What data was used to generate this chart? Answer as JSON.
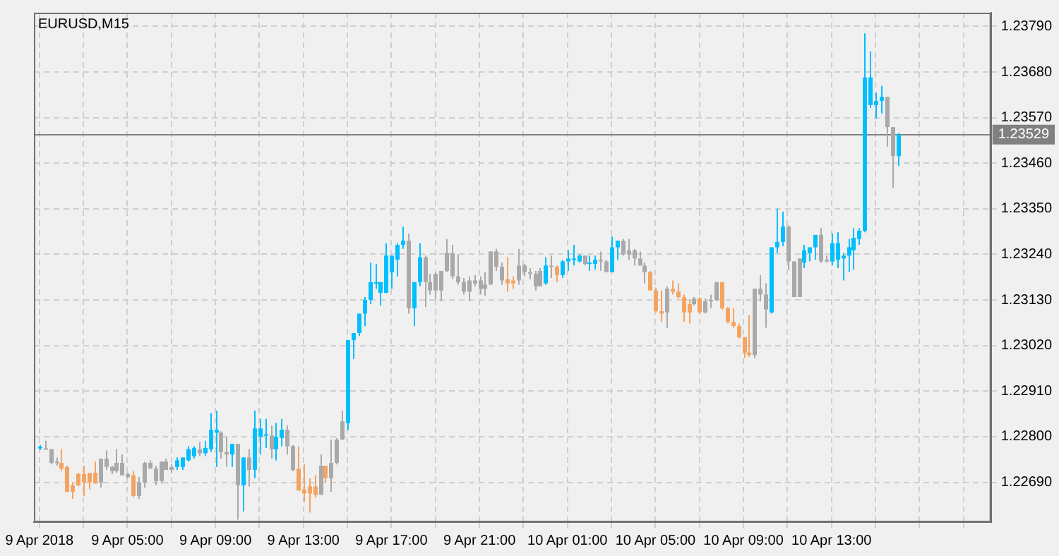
{
  "chart_data": {
    "type": "candlestick",
    "title": "EURUSD,M15",
    "x": [
      "2018-04-09T01:00",
      "2018-04-09T01:15",
      "2018-04-09T01:30",
      "2018-04-09T01:45",
      "2018-04-09T02:00",
      "2018-04-09T02:15",
      "2018-04-09T02:30",
      "2018-04-09T02:45",
      "2018-04-09T03:00",
      "2018-04-09T03:15",
      "2018-04-09T03:30",
      "2018-04-09T03:45",
      "2018-04-09T04:00",
      "2018-04-09T04:15",
      "2018-04-09T04:30",
      "2018-04-09T04:45",
      "2018-04-09T05:00",
      "2018-04-09T05:15",
      "2018-04-09T05:30",
      "2018-04-09T05:45",
      "2018-04-09T06:00",
      "2018-04-09T06:15",
      "2018-04-09T06:30",
      "2018-04-09T06:45",
      "2018-04-09T07:00",
      "2018-04-09T07:15",
      "2018-04-09T07:30",
      "2018-04-09T07:45",
      "2018-04-09T08:00",
      "2018-04-09T08:15",
      "2018-04-09T08:30",
      "2018-04-09T08:45",
      "2018-04-09T09:00",
      "2018-04-09T09:15",
      "2018-04-09T09:30",
      "2018-04-09T09:45",
      "2018-04-09T10:00",
      "2018-04-09T10:15",
      "2018-04-09T10:30",
      "2018-04-09T10:45",
      "2018-04-09T11:00",
      "2018-04-09T11:15",
      "2018-04-09T11:30",
      "2018-04-09T11:45",
      "2018-04-09T12:00",
      "2018-04-09T12:15",
      "2018-04-09T12:30",
      "2018-04-09T12:45",
      "2018-04-09T13:00",
      "2018-04-09T13:15",
      "2018-04-09T13:30",
      "2018-04-09T13:45",
      "2018-04-09T14:00",
      "2018-04-09T14:15",
      "2018-04-09T14:30",
      "2018-04-09T14:45",
      "2018-04-09T15:00",
      "2018-04-09T15:15",
      "2018-04-09T15:30",
      "2018-04-09T15:45",
      "2018-04-09T16:00",
      "2018-04-09T16:15",
      "2018-04-09T16:30",
      "2018-04-09T16:45",
      "2018-04-09T17:00",
      "2018-04-09T17:15",
      "2018-04-09T17:30",
      "2018-04-09T17:45",
      "2018-04-09T18:00",
      "2018-04-09T18:15",
      "2018-04-09T18:30",
      "2018-04-09T18:45",
      "2018-04-09T19:00",
      "2018-04-09T19:15",
      "2018-04-09T19:30",
      "2018-04-09T19:45",
      "2018-04-09T20:00",
      "2018-04-09T20:15",
      "2018-04-09T20:30",
      "2018-04-09T20:45",
      "2018-04-09T21:00",
      "2018-04-09T21:15",
      "2018-04-09T21:30",
      "2018-04-09T21:45",
      "2018-04-09T22:00",
      "2018-04-09T22:15",
      "2018-04-09T22:30",
      "2018-04-09T22:45",
      "2018-04-09T23:00",
      "2018-04-09T23:15",
      "2018-04-09T23:30",
      "2018-04-09T23:45",
      "2018-04-10T00:00",
      "2018-04-10T00:15",
      "2018-04-10T00:30",
      "2018-04-10T00:45",
      "2018-04-10T01:00",
      "2018-04-10T01:15",
      "2018-04-10T01:30",
      "2018-04-10T01:45",
      "2018-04-10T02:00",
      "2018-04-10T02:15",
      "2018-04-10T02:30",
      "2018-04-10T02:45",
      "2018-04-10T03:00",
      "2018-04-10T03:15",
      "2018-04-10T03:30",
      "2018-04-10T03:45",
      "2018-04-10T04:00",
      "2018-04-10T04:15",
      "2018-04-10T04:30",
      "2018-04-10T04:45",
      "2018-04-10T05:00",
      "2018-04-10T05:15",
      "2018-04-10T05:30",
      "2018-04-10T05:45",
      "2018-04-10T06:00",
      "2018-04-10T06:15",
      "2018-04-10T06:30",
      "2018-04-10T06:45",
      "2018-04-10T07:00",
      "2018-04-10T07:15",
      "2018-04-10T07:30",
      "2018-04-10T07:45",
      "2018-04-10T08:00",
      "2018-04-10T08:15",
      "2018-04-10T08:30",
      "2018-04-10T08:45",
      "2018-04-10T09:00",
      "2018-04-10T09:15",
      "2018-04-10T09:30",
      "2018-04-10T09:45",
      "2018-04-10T10:00",
      "2018-04-10T10:15",
      "2018-04-10T10:30",
      "2018-04-10T10:45",
      "2018-04-10T11:00",
      "2018-04-10T11:15",
      "2018-04-10T11:30",
      "2018-04-10T11:45",
      "2018-04-10T12:00",
      "2018-04-10T12:15",
      "2018-04-10T12:30",
      "2018-04-10T12:45",
      "2018-04-10T13:00",
      "2018-04-10T13:15",
      "2018-04-10T13:30",
      "2018-04-10T13:45",
      "2018-04-10T14:00",
      "2018-04-10T14:15",
      "2018-04-10T14:30",
      "2018-04-10T14:45",
      "2018-04-10T15:00",
      "2018-04-10T15:15",
      "2018-04-10T15:30",
      "2018-04-10T15:45",
      "2018-04-10T16:00"
    ],
    "ohlc": [
      [
        1.22772,
        1.2278,
        1.22768,
        1.22776
      ],
      [
        1.22772,
        1.2279,
        1.2277,
        1.2277
      ],
      [
        1.2277,
        1.2277,
        1.22733,
        1.22737
      ],
      [
        1.2274,
        1.2275,
        1.2273,
        1.22737
      ],
      [
        1.22737,
        1.2277,
        1.22717,
        1.22723
      ],
      [
        1.22727,
        1.2273,
        1.22667,
        1.22667
      ],
      [
        1.22683,
        1.2269,
        1.2265,
        1.22667
      ],
      [
        1.2271,
        1.22713,
        1.2268,
        1.22683
      ],
      [
        1.2271,
        1.2273,
        1.22657,
        1.2269
      ],
      [
        1.22713,
        1.22713,
        1.22673,
        1.2269
      ],
      [
        1.22713,
        1.2274,
        1.22687,
        1.22687
      ],
      [
        1.22747,
        1.22747,
        1.22677,
        1.2269
      ],
      [
        1.22747,
        1.22767,
        1.2272,
        1.22727
      ],
      [
        1.22727,
        1.2273,
        1.2271,
        1.22717
      ],
      [
        1.22737,
        1.2277,
        1.22713,
        1.22717
      ],
      [
        1.22737,
        1.22757,
        1.22707,
        1.22707
      ],
      [
        1.2271,
        1.22713,
        1.227,
        1.22703
      ],
      [
        1.22707,
        1.22717,
        1.22653,
        1.22657
      ],
      [
        1.2269,
        1.22703,
        1.2265,
        1.22657
      ],
      [
        1.22737,
        1.2274,
        1.22677,
        1.2269
      ],
      [
        1.22737,
        1.22743,
        1.22723,
        1.22723
      ],
      [
        1.22723,
        1.2273,
        1.22683,
        1.22693
      ],
      [
        1.2274,
        1.2274,
        1.22687,
        1.22693
      ],
      [
        1.2274,
        1.22747,
        1.2272,
        1.2272
      ],
      [
        1.22727,
        1.22733,
        1.22713,
        1.2272
      ],
      [
        1.22727,
        1.2275,
        1.2272,
        1.22743
      ],
      [
        1.22727,
        1.2275,
        1.2272,
        1.2275
      ],
      [
        1.22743,
        1.22777,
        1.2274,
        1.2277
      ],
      [
        1.22753,
        1.22777,
        1.22747,
        1.22773
      ],
      [
        1.2277,
        1.22787,
        1.22753,
        1.2276
      ],
      [
        1.2276,
        1.2279,
        1.22753,
        1.22773
      ],
      [
        1.2277,
        1.22857,
        1.22763,
        1.22817
      ],
      [
        1.2281,
        1.22863,
        1.22727,
        1.22817
      ],
      [
        1.2281,
        1.22813,
        1.22747,
        1.22763
      ],
      [
        1.22763,
        1.228,
        1.22727,
        1.22757
      ],
      [
        1.22757,
        1.22783,
        1.22727,
        1.22783
      ],
      [
        1.22783,
        1.22783,
        1.226,
        1.22683
      ],
      [
        1.22683,
        1.2275,
        1.2262,
        1.2275
      ],
      [
        1.2275,
        1.2277,
        1.2268,
        1.2272
      ],
      [
        1.2272,
        1.22863,
        1.227,
        1.2282
      ],
      [
        1.228,
        1.22843,
        1.22757,
        1.2282
      ],
      [
        1.22803,
        1.22843,
        1.22773,
        1.22806
      ],
      [
        1.22803,
        1.22827,
        1.22747,
        1.2277
      ],
      [
        1.2277,
        1.22833,
        1.22743,
        1.228
      ],
      [
        1.22797,
        1.22843,
        1.22777,
        1.22817
      ],
      [
        1.22817,
        1.22827,
        1.22757,
        1.22777
      ],
      [
        1.22777,
        1.2278,
        1.22717,
        1.2272
      ],
      [
        1.22723,
        1.22777,
        1.2267,
        1.2267
      ],
      [
        1.22673,
        1.22733,
        1.22643,
        1.22663
      ],
      [
        1.2268,
        1.227,
        1.22617,
        1.22663
      ],
      [
        1.2268,
        1.22707,
        1.22653,
        1.2266
      ],
      [
        1.2273,
        1.22757,
        1.2266,
        1.2266
      ],
      [
        1.2273,
        1.2273,
        1.2269,
        1.227
      ],
      [
        1.22737,
        1.22793,
        1.22667,
        1.227
      ],
      [
        1.22793,
        1.22797,
        1.22733,
        1.22737
      ],
      [
        1.22837,
        1.22863,
        1.22793,
        1.22793
      ],
      [
        1.22833,
        1.23033,
        1.22817,
        1.23033
      ],
      [
        1.23033,
        1.2305,
        1.22987,
        1.2305
      ],
      [
        1.2305,
        1.23097,
        1.23043,
        1.23097
      ],
      [
        1.23097,
        1.23137,
        1.23067,
        1.2313
      ],
      [
        1.2313,
        1.2322,
        1.2312,
        1.23173
      ],
      [
        1.2317,
        1.23217,
        1.23157,
        1.23173
      ],
      [
        1.23147,
        1.23173,
        1.23117,
        1.23173
      ],
      [
        1.23147,
        1.23267,
        1.23147,
        1.23237
      ],
      [
        1.23197,
        1.23237,
        1.23157,
        1.23237
      ],
      [
        1.23227,
        1.23267,
        1.23187,
        1.23263
      ],
      [
        1.23263,
        1.23307,
        1.23253,
        1.23273
      ],
      [
        1.23273,
        1.2329,
        1.23097,
        1.2311
      ],
      [
        1.2311,
        1.23173,
        1.23067,
        1.23173
      ],
      [
        1.23173,
        1.23267,
        1.23163,
        1.23233
      ],
      [
        1.23233,
        1.23237,
        1.23113,
        1.23173
      ],
      [
        1.23173,
        1.23193,
        1.23143,
        1.23153
      ],
      [
        1.23193,
        1.23197,
        1.23133,
        1.23153
      ],
      [
        1.232,
        1.232,
        1.23127,
        1.23153
      ],
      [
        1.23243,
        1.23277,
        1.23197,
        1.232
      ],
      [
        1.23243,
        1.23263,
        1.2318,
        1.23187
      ],
      [
        1.23187,
        1.2324,
        1.23167,
        1.23173
      ],
      [
        1.23173,
        1.23183,
        1.23143,
        1.2315
      ],
      [
        1.23177,
        1.23187,
        1.23127,
        1.2315
      ],
      [
        1.23177,
        1.2319,
        1.23163,
        1.2317
      ],
      [
        1.23177,
        1.23187,
        1.23143,
        1.23157
      ],
      [
        1.23167,
        1.23197,
        1.2314,
        1.23157
      ],
      [
        1.23247,
        1.23247,
        1.23167,
        1.23167
      ],
      [
        1.23247,
        1.23253,
        1.232,
        1.2321
      ],
      [
        1.2321,
        1.2322,
        1.23167,
        1.23177
      ],
      [
        1.2318,
        1.23233,
        1.2315,
        1.2317
      ],
      [
        1.23177,
        1.23187,
        1.23157,
        1.2317
      ],
      [
        1.23213,
        1.23253,
        1.23167,
        1.23177
      ],
      [
        1.23213,
        1.23217,
        1.23187,
        1.23197
      ],
      [
        1.23197,
        1.23207,
        1.2318,
        1.23193
      ],
      [
        1.23193,
        1.232,
        1.23153,
        1.23163
      ],
      [
        1.232,
        1.23207,
        1.23163,
        1.23163
      ],
      [
        1.2317,
        1.23233,
        1.23167,
        1.23213
      ],
      [
        1.23213,
        1.23237,
        1.23183,
        1.2321
      ],
      [
        1.2321,
        1.23213,
        1.23173,
        1.2319
      ],
      [
        1.2319,
        1.23227,
        1.23183,
        1.23223
      ],
      [
        1.23223,
        1.2325,
        1.232,
        1.2323
      ],
      [
        1.23227,
        1.23263,
        1.23213,
        1.2323
      ],
      [
        1.23223,
        1.2324,
        1.2322,
        1.23237
      ],
      [
        1.23237,
        1.23237,
        1.23213,
        1.23217
      ],
      [
        1.23217,
        1.23237,
        1.232,
        1.2322
      ],
      [
        1.23217,
        1.23237,
        1.23203,
        1.23227
      ],
      [
        1.23227,
        1.23247,
        1.232,
        1.23223
      ],
      [
        1.23223,
        1.23227,
        1.23197,
        1.23197
      ],
      [
        1.23197,
        1.23283,
        1.23197,
        1.23257
      ],
      [
        1.23257,
        1.23273,
        1.23227,
        1.23273
      ],
      [
        1.23273,
        1.23277,
        1.23237,
        1.2324
      ],
      [
        1.2325,
        1.23277,
        1.23227,
        1.2324
      ],
      [
        1.2325,
        1.23253,
        1.23213,
        1.2323
      ],
      [
        1.2323,
        1.23247,
        1.23213,
        1.23213
      ],
      [
        1.23213,
        1.2322,
        1.2317,
        1.23197
      ],
      [
        1.23197,
        1.232,
        1.23153,
        1.23153
      ],
      [
        1.23153,
        1.2316,
        1.231,
        1.23103
      ],
      [
        1.23103,
        1.23153,
        1.23077,
        1.23097
      ],
      [
        1.23157,
        1.23163,
        1.23063,
        1.231
      ],
      [
        1.23157,
        1.23177,
        1.23143,
        1.2315
      ],
      [
        1.2315,
        1.2317,
        1.23133,
        1.23137
      ],
      [
        1.23137,
        1.23143,
        1.23077,
        1.231
      ],
      [
        1.2312,
        1.2313,
        1.23073,
        1.231
      ],
      [
        1.23133,
        1.23137,
        1.23117,
        1.2312
      ],
      [
        1.23133,
        1.23137,
        1.23097,
        1.231
      ],
      [
        1.23127,
        1.23133,
        1.23097,
        1.231
      ],
      [
        1.2313,
        1.23143,
        1.2311,
        1.23127
      ],
      [
        1.23173,
        1.23173,
        1.23127,
        1.2313
      ],
      [
        1.23173,
        1.23173,
        1.23107,
        1.2311
      ],
      [
        1.2311,
        1.23113,
        1.23073,
        1.23077
      ],
      [
        1.23077,
        1.2311,
        1.23063,
        1.23067
      ],
      [
        1.23067,
        1.23073,
        1.23037,
        1.2304
      ],
      [
        1.2304,
        1.2304,
        1.2299,
        1.23003
      ],
      [
        1.23003,
        1.23093,
        1.22993,
        1.22997
      ],
      [
        1.23157,
        1.23157,
        1.2299,
        1.22997
      ],
      [
        1.23157,
        1.2319,
        1.23127,
        1.23143
      ],
      [
        1.23143,
        1.2317,
        1.23063,
        1.23107
      ],
      [
        1.231,
        1.23257,
        1.23097,
        1.23257
      ],
      [
        1.23257,
        1.2335,
        1.23243,
        1.2327
      ],
      [
        1.2327,
        1.23343,
        1.2326,
        1.23307
      ],
      [
        1.23307,
        1.2331,
        1.23203,
        1.23223
      ],
      [
        1.23223,
        1.23223,
        1.23137,
        1.23137
      ],
      [
        1.2323,
        1.2323,
        1.23137,
        1.23137
      ],
      [
        1.2322,
        1.23263,
        1.23207,
        1.2325
      ],
      [
        1.23243,
        1.23257,
        1.23223,
        1.23257
      ],
      [
        1.23257,
        1.23287,
        1.23227,
        1.23287
      ],
      [
        1.23287,
        1.23303,
        1.2322,
        1.23223
      ],
      [
        1.23227,
        1.23237,
        1.2322,
        1.23223
      ],
      [
        1.23223,
        1.2329,
        1.23213,
        1.23267
      ],
      [
        1.23227,
        1.23293,
        1.23207,
        1.23267
      ],
      [
        1.2323,
        1.23243,
        1.23177,
        1.23237
      ],
      [
        1.23237,
        1.23277,
        1.23197,
        1.23257
      ],
      [
        1.2325,
        1.23303,
        1.23203,
        1.2328
      ],
      [
        1.23277,
        1.23303,
        1.23263,
        1.23297
      ],
      [
        1.23297,
        1.23773,
        1.23293,
        1.23667
      ],
      [
        1.236,
        1.2373,
        1.23593,
        1.23667
      ],
      [
        1.236,
        1.2363,
        1.23567,
        1.2361
      ],
      [
        1.2361,
        1.23647,
        1.2358,
        1.2362
      ],
      [
        1.2362,
        1.2362,
        1.235,
        1.23547
      ],
      [
        1.23547,
        1.23547,
        1.234,
        1.23477
      ],
      [
        1.23477,
        1.23533,
        1.23453,
        1.23529
      ]
    ],
    "colors": [
      "#00bfff",
      "#a9a9a9",
      "#a9a9a9",
      "#a9a9a9",
      "#f4a460",
      "#f4a460",
      "#f4a460",
      "#f4a460",
      "#f4a460",
      "#f4a460",
      "#f4a460",
      "#a9a9a9",
      "#a9a9a9",
      "#a9a9a9",
      "#a9a9a9",
      "#a9a9a9",
      "#a9a9a9",
      "#f4a460",
      "#a9a9a9",
      "#a9a9a9",
      "#a9a9a9",
      "#a9a9a9",
      "#a9a9a9",
      "#a9a9a9",
      "#a9a9a9",
      "#00bfff",
      "#00bfff",
      "#00bfff",
      "#00bfff",
      "#a9a9a9",
      "#00bfff",
      "#00bfff",
      "#00bfff",
      "#a9a9a9",
      "#a9a9a9",
      "#00bfff",
      "#a9a9a9",
      "#00bfff",
      "#a9a9a9",
      "#00bfff",
      "#00bfff",
      "#00bfff",
      "#a9a9a9",
      "#00bfff",
      "#00bfff",
      "#a9a9a9",
      "#a9a9a9",
      "#f4a460",
      "#f4a460",
      "#f4a460",
      "#f4a460",
      "#a9a9a9",
      "#f4a460",
      "#a9a9a9",
      "#a9a9a9",
      "#a9a9a9",
      "#00bfff",
      "#00bfff",
      "#00bfff",
      "#00bfff",
      "#00bfff",
      "#00bfff",
      "#00bfff",
      "#00bfff",
      "#00bfff",
      "#00bfff",
      "#00bfff",
      "#a9a9a9",
      "#00bfff",
      "#00bfff",
      "#a9a9a9",
      "#a9a9a9",
      "#a9a9a9",
      "#a9a9a9",
      "#a9a9a9",
      "#a9a9a9",
      "#a9a9a9",
      "#a9a9a9",
      "#a9a9a9",
      "#a9a9a9",
      "#a9a9a9",
      "#a9a9a9",
      "#a9a9a9",
      "#a9a9a9",
      "#a9a9a9",
      "#f4a460",
      "#f4a460",
      "#a9a9a9",
      "#a9a9a9",
      "#a9a9a9",
      "#a9a9a9",
      "#a9a9a9",
      "#00bfff",
      "#a9a9a9",
      "#f4a460",
      "#00bfff",
      "#00bfff",
      "#00bfff",
      "#00bfff",
      "#a9a9a9",
      "#00bfff",
      "#00bfff",
      "#a9a9a9",
      "#a9a9a9",
      "#00bfff",
      "#00bfff",
      "#a9a9a9",
      "#a9a9a9",
      "#a9a9a9",
      "#a9a9a9",
      "#a9a9a9",
      "#f4a460",
      "#f4a460",
      "#f4a460",
      "#a9a9a9",
      "#f4a460",
      "#f4a460",
      "#f4a460",
      "#f4a460",
      "#a9a9a9",
      "#f4a460",
      "#a9a9a9",
      "#a9a9a9",
      "#a9a9a9",
      "#f4a460",
      "#f4a460",
      "#f4a460",
      "#f4a460",
      "#f4a460",
      "#f4a460",
      "#a9a9a9",
      "#a9a9a9",
      "#a9a9a9",
      "#00bfff",
      "#00bfff",
      "#00bfff",
      "#a9a9a9",
      "#a9a9a9",
      "#a9a9a9",
      "#00bfff",
      "#00bfff",
      "#00bfff",
      "#a9a9a9",
      "#a9a9a9",
      "#00bfff",
      "#00bfff",
      "#00bfff",
      "#00bfff",
      "#00bfff",
      "#00bfff",
      "#00bfff",
      "#00bfff",
      "#00bfff",
      "#00bfff",
      "#a9a9a9",
      "#a9a9a9",
      "#00bfff"
    ],
    "xlim": [
      "2018-04-09T00:45",
      "2018-04-10T20:15"
    ],
    "xticks": [
      {
        "value": "2018-04-09T01:00",
        "label": "9 Apr 2018"
      },
      {
        "value": "2018-04-09T03:00",
        "label": null
      },
      {
        "value": "2018-04-09T05:00",
        "label": "9 Apr 05:00"
      },
      {
        "value": "2018-04-09T07:00",
        "label": null
      },
      {
        "value": "2018-04-09T09:00",
        "label": "9 Apr 09:00"
      },
      {
        "value": "2018-04-09T11:00",
        "label": null
      },
      {
        "value": "2018-04-09T13:00",
        "label": "9 Apr 13:00"
      },
      {
        "value": "2018-04-09T15:00",
        "label": null
      },
      {
        "value": "2018-04-09T17:00",
        "label": "9 Apr 17:00"
      },
      {
        "value": "2018-04-09T19:00",
        "label": null
      },
      {
        "value": "2018-04-09T21:00",
        "label": "9 Apr 21:00"
      },
      {
        "value": "2018-04-09T23:00",
        "label": null
      },
      {
        "value": "2018-04-10T01:00",
        "label": "10 Apr 01:00"
      },
      {
        "value": "2018-04-10T03:00",
        "label": null
      },
      {
        "value": "2018-04-10T05:00",
        "label": "10 Apr 05:00"
      },
      {
        "value": "2018-04-10T07:00",
        "label": null
      },
      {
        "value": "2018-04-10T09:00",
        "label": "10 Apr 09:00"
      },
      {
        "value": "2018-04-10T11:00",
        "label": null
      },
      {
        "value": "2018-04-10T13:00",
        "label": "10 Apr 13:00"
      },
      {
        "value": "2018-04-10T15:00",
        "label": null
      },
      {
        "value": "2018-04-10T17:00",
        "label": null
      },
      {
        "value": "2018-04-10T19:00",
        "label": null
      }
    ],
    "ylim": [
      1.22594,
      1.23823
    ],
    "yticks": [
      {
        "value": 1.2269,
        "label": "1.22690"
      },
      {
        "value": 1.228,
        "label": "1.22800"
      },
      {
        "value": 1.2291,
        "label": "1.22910"
      },
      {
        "value": 1.2302,
        "label": "1.23020"
      },
      {
        "value": 1.2313,
        "label": "1.23130"
      },
      {
        "value": 1.2324,
        "label": "1.23240"
      },
      {
        "value": 1.2335,
        "label": "1.23350"
      },
      {
        "value": 1.2346,
        "label": "1.23460"
      },
      {
        "value": 1.2357,
        "label": "1.23570"
      },
      {
        "value": 1.2368,
        "label": "1.23680"
      },
      {
        "value": 1.2379,
        "label": "1.23790"
      }
    ],
    "ref_lines": [
      {
        "axis": "y",
        "value": 1.23529,
        "label": "1.23529",
        "color": "#808080",
        "line_style": "solid"
      }
    ],
    "grid": true,
    "legend": false
  }
}
